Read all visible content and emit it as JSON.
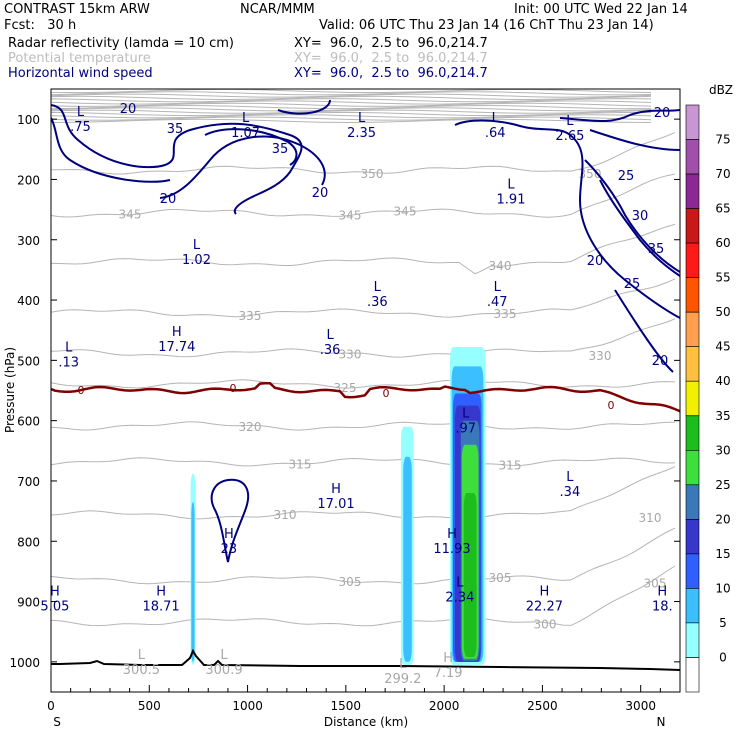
{
  "header": {
    "model": "CONTRAST 15km ARW",
    "fcst_label": "Fcst:   30 h",
    "org": "NCAR/MMM",
    "init": "Init: 00 UTC Wed 22 Jan 14",
    "valid": "Valid: 06 UTC Thu 23 Jan 14 (16 ChT Thu 23 Jan 14)",
    "fields": [
      {
        "name": "Radar reflectivity (lamda = 10 cm)",
        "xy": "XY=  96.0,  2.5 to  96.0,214.7"
      },
      {
        "name": "Potential temperature",
        "xy": "XY=  96.0,  2.5 to  96.0,214.7"
      },
      {
        "name": "Horizontal wind speed",
        "xy": "XY=  96.0,  2.5 to  96.0,214.7"
      }
    ]
  },
  "chart_data": {
    "type": "cross-section",
    "xlabel": "Distance (km)",
    "ylabel": "Pressure (hPa)",
    "xlim": [
      0,
      3200
    ],
    "ylim": [
      1050,
      50
    ],
    "xticks": [
      0,
      500,
      1000,
      1500,
      2000,
      2500,
      3000
    ],
    "yticks": [
      100,
      200,
      300,
      400,
      500,
      600,
      700,
      800,
      900,
      1000
    ],
    "end_labels": {
      "left": "S",
      "right": "N"
    },
    "colorbar": {
      "unit": "dBZ",
      "levels": [
        0,
        5,
        10,
        15,
        20,
        25,
        30,
        35,
        40,
        45,
        50,
        55,
        60,
        65,
        70,
        75
      ],
      "colors": [
        "#ffffff",
        "#96ffff",
        "#3cbfff",
        "#2f5fff",
        "#3737cc",
        "#3a78b9",
        "#3cdf3c",
        "#1cbd1c",
        "#f0f000",
        "#ffbf3f",
        "#ff9f4f",
        "#ff5500",
        "#ff1a1a",
        "#c81818",
        "#8c2896",
        "#a050aa",
        "#c896d2"
      ]
    },
    "potential_temperature_K": {
      "contours": [
        300,
        305,
        310,
        315,
        320,
        325,
        330,
        335,
        340,
        345,
        350
      ],
      "freezing_level_label": "0"
    },
    "wind_speed_contours": [
      20,
      25,
      30,
      35
    ],
    "extrema": [
      {
        "t": "L",
        "v": ".75",
        "x": 150,
        "p": 95
      },
      {
        "t": "L",
        "v": "1.07",
        "x": 990,
        "p": 105
      },
      {
        "t": "L",
        "v": "2.35",
        "x": 1580,
        "p": 105
      },
      {
        "t": "L",
        "v": ".64",
        "x": 2260,
        "p": 105
      },
      {
        "t": "L",
        "v": "2.65",
        "x": 2640,
        "p": 110
      },
      {
        "t": "L",
        "v": "1.91",
        "x": 2340,
        "p": 215
      },
      {
        "t": "L",
        "v": "1.02",
        "x": 740,
        "p": 315
      },
      {
        "t": "L",
        "v": ".36",
        "x": 1660,
        "p": 385
      },
      {
        "t": "L",
        "v": ".47",
        "x": 2270,
        "p": 385
      },
      {
        "t": "L",
        "v": ".36",
        "x": 1420,
        "p": 465
      },
      {
        "t": "L",
        "v": ".13",
        "x": 90,
        "p": 485
      },
      {
        "t": "H",
        "v": "17.74",
        "x": 640,
        "p": 460
      },
      {
        "t": "L",
        "v": ".97",
        "x": 2110,
        "p": 595
      },
      {
        "t": "L",
        "v": ".34",
        "x": 2640,
        "p": 700
      },
      {
        "t": "H",
        "v": "17.01",
        "x": 1450,
        "p": 720
      },
      {
        "t": "H",
        "v": "23",
        "x": 905,
        "p": 795
      },
      {
        "t": "H",
        "v": "11.93",
        "x": 2040,
        "p": 795
      },
      {
        "t": "L",
        "v": "2.34",
        "x": 2080,
        "p": 875
      },
      {
        "t": "H",
        "v": "5.05",
        "x": 20,
        "p": 890
      },
      {
        "t": "H",
        "v": "18.71",
        "x": 560,
        "p": 890
      },
      {
        "t": "H",
        "v": "22.27",
        "x": 2510,
        "p": 890
      },
      {
        "t": "H",
        "v": "18.",
        "x": 3110,
        "p": 890
      },
      {
        "t": "L",
        "v": "300.5",
        "x": 460,
        "p": 995
      },
      {
        "t": "L",
        "v": "300.9",
        "x": 880,
        "p": 995
      },
      {
        "t": "L",
        "v": "299.2",
        "x": 1790,
        "p": 1010
      },
      {
        "t": "H",
        "v": "7.19",
        "x": 2020,
        "p": 1000
      }
    ]
  }
}
